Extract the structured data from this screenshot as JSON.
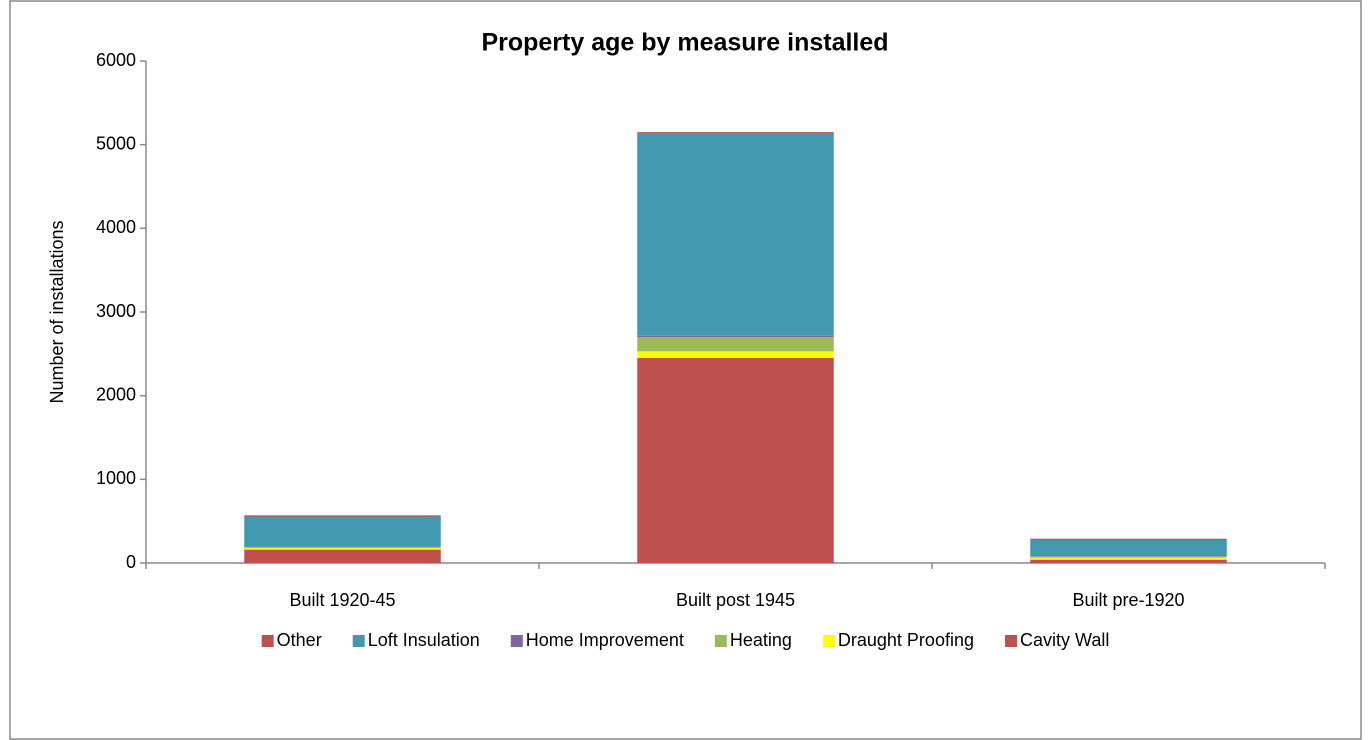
{
  "chart_data": {
    "type": "stacked_bar",
    "title": "Property age by measure installed",
    "y_label": "Number of installations",
    "categories": [
      "Built 1920-45",
      "Built post 1945",
      "Built pre-1920"
    ],
    "series": [
      {
        "name": "Cavity Wall",
        "color": "#c0504d",
        "values": [
          160,
          2450,
          40
        ]
      },
      {
        "name": "Draught Proofing",
        "color": "#ffff00",
        "values": [
          20,
          80,
          25
        ]
      },
      {
        "name": "Heating",
        "color": "#9bbb59",
        "values": [
          10,
          170,
          10
        ]
      },
      {
        "name": "Home Improvement",
        "color": "#8064a2",
        "values": [
          5,
          15,
          5
        ]
      },
      {
        "name": "Loft Insulation",
        "color": "#4198af",
        "values": [
          360,
          2415,
          195
        ]
      },
      {
        "name": "Other",
        "color": "#c0504d",
        "values": [
          15,
          20,
          15
        ]
      }
    ],
    "ylim": [
      0,
      6000
    ],
    "yticks": [
      0,
      1000,
      2000,
      3000,
      4000,
      5000,
      6000
    ],
    "legend": "bottom",
    "grid": false
  }
}
